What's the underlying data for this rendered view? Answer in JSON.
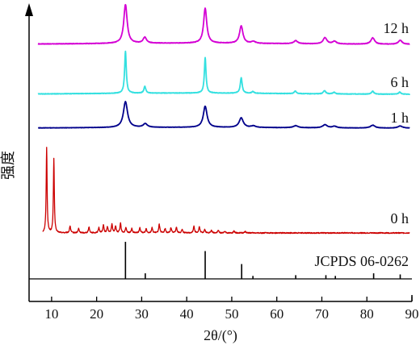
{
  "chart_data": {
    "type": "line",
    "xlabel": "2θ/(°)",
    "ylabel": "强度",
    "xlim": [
      5,
      90
    ],
    "x_ticks": [
      10,
      20,
      30,
      40,
      50,
      60,
      70,
      80,
      90
    ],
    "x_tick_labels": [
      "10",
      "20",
      "30",
      "40",
      "50",
      "60",
      "70",
      "80",
      "90"
    ],
    "reference": {
      "name": "JCPDS 06-0262",
      "color": "#000000",
      "lines": [
        {
          "x": 26.4,
          "intensity": 1.0
        },
        {
          "x": 30.8,
          "intensity": 0.15
        },
        {
          "x": 44.1,
          "intensity": 0.75
        },
        {
          "x": 52.2,
          "intensity": 0.4
        },
        {
          "x": 54.7,
          "intensity": 0.08
        },
        {
          "x": 64.2,
          "intensity": 0.1
        },
        {
          "x": 70.9,
          "intensity": 0.1
        },
        {
          "x": 73.0,
          "intensity": 0.08
        },
        {
          "x": 81.5,
          "intensity": 0.15
        },
        {
          "x": 87.4,
          "intensity": 0.12
        }
      ]
    },
    "series": [
      {
        "name": "0 h",
        "color": "#cc0000",
        "peaks": [
          {
            "x": 8.9,
            "h": 1.0,
            "w": 0.12
          },
          {
            "x": 10.5,
            "h": 0.87,
            "w": 0.12
          },
          {
            "x": 14.1,
            "h": 0.08,
            "w": 0.15
          },
          {
            "x": 16.0,
            "h": 0.05,
            "w": 0.15
          },
          {
            "x": 18.3,
            "h": 0.07,
            "w": 0.15
          },
          {
            "x": 20.5,
            "h": 0.06,
            "w": 0.15
          },
          {
            "x": 21.5,
            "h": 0.09,
            "w": 0.15
          },
          {
            "x": 22.4,
            "h": 0.07,
            "w": 0.15
          },
          {
            "x": 23.4,
            "h": 0.1,
            "w": 0.15
          },
          {
            "x": 24.2,
            "h": 0.08,
            "w": 0.15
          },
          {
            "x": 25.3,
            "h": 0.11,
            "w": 0.15
          },
          {
            "x": 26.5,
            "h": 0.06,
            "w": 0.15
          },
          {
            "x": 27.8,
            "h": 0.05,
            "w": 0.15
          },
          {
            "x": 29.6,
            "h": 0.06,
            "w": 0.15
          },
          {
            "x": 31.0,
            "h": 0.05,
            "w": 0.15
          },
          {
            "x": 32.3,
            "h": 0.06,
            "w": 0.15
          },
          {
            "x": 33.9,
            "h": 0.1,
            "w": 0.15
          },
          {
            "x": 35.2,
            "h": 0.05,
            "w": 0.15
          },
          {
            "x": 36.5,
            "h": 0.06,
            "w": 0.15
          },
          {
            "x": 37.7,
            "h": 0.07,
            "w": 0.15
          },
          {
            "x": 39.0,
            "h": 0.04,
            "w": 0.15
          },
          {
            "x": 41.6,
            "h": 0.08,
            "w": 0.15
          },
          {
            "x": 42.8,
            "h": 0.07,
            "w": 0.15
          },
          {
            "x": 44.0,
            "h": 0.04,
            "w": 0.15
          },
          {
            "x": 45.5,
            "h": 0.03,
            "w": 0.15
          },
          {
            "x": 47.0,
            "h": 0.03,
            "w": 0.15
          },
          {
            "x": 48.5,
            "h": 0.02,
            "w": 0.15
          },
          {
            "x": 50.5,
            "h": 0.02,
            "w": 0.15
          },
          {
            "x": 53.0,
            "h": 0.015,
            "w": 0.2
          }
        ]
      },
      {
        "name": "1 h",
        "color": "#00008b",
        "peaks": [
          {
            "x": 26.4,
            "h": 1.0,
            "w": 0.55
          },
          {
            "x": 30.8,
            "h": 0.14,
            "w": 0.55
          },
          {
            "x": 44.1,
            "h": 0.82,
            "w": 0.5
          },
          {
            "x": 52.1,
            "h": 0.37,
            "w": 0.55
          },
          {
            "x": 54.8,
            "h": 0.06,
            "w": 0.6
          },
          {
            "x": 64.2,
            "h": 0.08,
            "w": 0.6
          },
          {
            "x": 70.7,
            "h": 0.12,
            "w": 0.6
          },
          {
            "x": 72.8,
            "h": 0.06,
            "w": 0.6
          },
          {
            "x": 81.3,
            "h": 0.11,
            "w": 0.6
          },
          {
            "x": 87.4,
            "h": 0.08,
            "w": 0.6
          }
        ]
      },
      {
        "name": "6 h",
        "color": "#33e0e0",
        "peaks": [
          {
            "x": 26.4,
            "h": 1.0,
            "w": 0.22
          },
          {
            "x": 30.7,
            "h": 0.16,
            "w": 0.25
          },
          {
            "x": 44.1,
            "h": 0.84,
            "w": 0.22
          },
          {
            "x": 52.1,
            "h": 0.37,
            "w": 0.25
          },
          {
            "x": 54.7,
            "h": 0.04,
            "w": 0.3
          },
          {
            "x": 64.1,
            "h": 0.06,
            "w": 0.3
          },
          {
            "x": 70.6,
            "h": 0.08,
            "w": 0.3
          },
          {
            "x": 72.7,
            "h": 0.04,
            "w": 0.3
          },
          {
            "x": 81.3,
            "h": 0.07,
            "w": 0.3
          },
          {
            "x": 87.3,
            "h": 0.05,
            "w": 0.3
          }
        ]
      },
      {
        "name": "12 h",
        "color": "#d400d4",
        "peaks": [
          {
            "x": 26.4,
            "h": 1.0,
            "w": 0.45
          },
          {
            "x": 30.7,
            "h": 0.15,
            "w": 0.45
          },
          {
            "x": 44.1,
            "h": 0.9,
            "w": 0.42
          },
          {
            "x": 52.1,
            "h": 0.45,
            "w": 0.45
          },
          {
            "x": 54.8,
            "h": 0.05,
            "w": 0.5
          },
          {
            "x": 64.2,
            "h": 0.08,
            "w": 0.5
          },
          {
            "x": 70.7,
            "h": 0.16,
            "w": 0.5
          },
          {
            "x": 72.8,
            "h": 0.07,
            "w": 0.5
          },
          {
            "x": 81.3,
            "h": 0.16,
            "w": 0.5
          },
          {
            "x": 87.4,
            "h": 0.1,
            "w": 0.5
          }
        ]
      }
    ],
    "grid": false,
    "legend": "inline-right"
  }
}
